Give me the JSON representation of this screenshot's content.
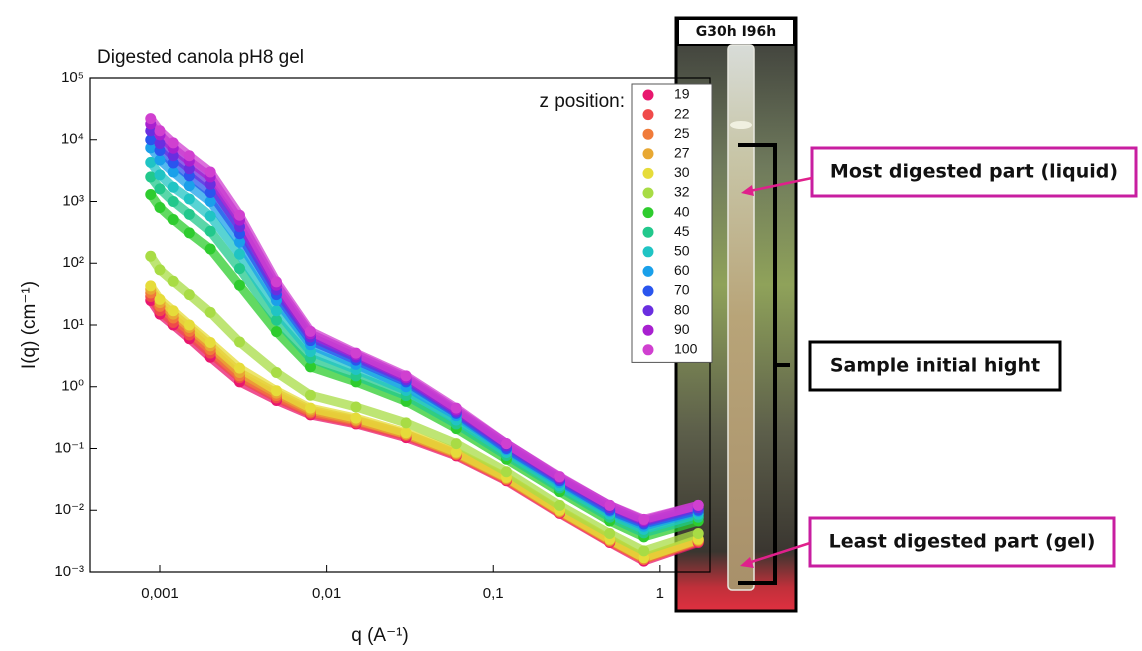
{
  "chart_data": {
    "type": "scatter",
    "title": "Digested canola pH8 gel",
    "x_label": "q (A⁻¹)",
    "y_label": "I(q) (cm⁻¹)",
    "legend_title": "z position:",
    "log_x": true,
    "log_y": true,
    "xlim": [
      0.00038,
      2
    ],
    "ylim": [
      0.001,
      100000
    ],
    "xticks": [
      {
        "value": 0.001,
        "label": "0,001"
      },
      {
        "value": 0.01,
        "label": "0,01"
      },
      {
        "value": 0.1,
        "label": "0,1"
      },
      1
    ],
    "yticks": [
      {
        "value": 0.001,
        "label": "10⁻³"
      },
      {
        "value": 0.01,
        "label": "10⁻²"
      },
      {
        "value": 0.1,
        "label": "10⁻¹"
      },
      {
        "value": 1,
        "label": "10⁰"
      },
      {
        "value": 10,
        "label": "10¹"
      },
      {
        "value": 100,
        "label": "10²"
      },
      {
        "value": 1000,
        "label": "10³"
      },
      {
        "value": 10000,
        "label": "10⁴"
      },
      {
        "value": 100000,
        "label": "10⁵"
      }
    ],
    "x": [
      0.00088,
      0.001,
      0.0012,
      0.0015,
      0.002,
      0.003,
      0.005,
      0.008,
      0.015,
      0.03,
      0.06,
      0.12,
      0.25,
      0.5,
      0.8,
      1.7
    ],
    "series": [
      {
        "name": "19",
        "color": "#e8176e",
        "values": [
          25,
          15,
          10,
          6.0,
          3.0,
          1.2,
          0.6,
          0.35,
          0.25,
          0.15,
          0.076,
          0.03,
          0.0089,
          0.003,
          0.0015,
          0.003
        ]
      },
      {
        "name": "22",
        "color": "#f04a4a",
        "values": [
          29,
          17,
          11,
          6.9,
          3.5,
          1.4,
          0.66,
          0.37,
          0.26,
          0.16,
          0.079,
          0.031,
          0.0092,
          0.0031,
          0.0016,
          0.0031
        ]
      },
      {
        "name": "25",
        "color": "#f07b3a",
        "values": [
          33,
          20,
          13,
          7.9,
          4.0,
          1.5,
          0.72,
          0.39,
          0.28,
          0.17,
          0.081,
          0.032,
          0.0094,
          0.0032,
          0.0016,
          0.0032
        ]
      },
      {
        "name": "27",
        "color": "#e8a833",
        "values": [
          38,
          23,
          15,
          9.1,
          4.6,
          1.7,
          0.79,
          0.42,
          0.29,
          0.17,
          0.084,
          0.033,
          0.0097,
          0.0033,
          0.0017,
          0.0033
        ]
      },
      {
        "name": "30",
        "color": "#e6dc3a",
        "values": [
          43,
          26,
          17,
          10,
          5.2,
          2.0,
          0.86,
          0.45,
          0.31,
          0.18,
          0.087,
          0.034,
          0.01,
          0.0034,
          0.0017,
          0.0034
        ]
      },
      {
        "name": "32",
        "color": "#a8dc45",
        "values": [
          130,
          78,
          51,
          31,
          16,
          5.3,
          1.7,
          0.73,
          0.47,
          0.26,
          0.12,
          0.042,
          0.012,
          0.0042,
          0.0022,
          0.0042
        ]
      },
      {
        "name": "40",
        "color": "#2ecc2e",
        "values": [
          1300,
          800,
          510,
          310,
          170,
          44,
          7.8,
          2.1,
          1.2,
          0.58,
          0.21,
          0.067,
          0.02,
          0.0067,
          0.0037,
          0.0067
        ]
      },
      {
        "name": "45",
        "color": "#22c88c",
        "values": [
          2500,
          1600,
          1000,
          620,
          330,
          82,
          12,
          2.9,
          1.5,
          0.72,
          0.25,
          0.077,
          0.023,
          0.0077,
          0.0043,
          0.0077
        ]
      },
      {
        "name": "50",
        "color": "#20c4c4",
        "values": [
          4300,
          2700,
          1700,
          1100,
          580,
          140,
          17,
          3.7,
          1.9,
          0.87,
          0.29,
          0.086,
          0.025,
          0.0086,
          0.0049,
          0.0086
        ]
      },
      {
        "name": "60",
        "color": "#1aa0ea",
        "values": [
          7400,
          4700,
          3000,
          1800,
          1000,
          220,
          25,
          4.8,
          2.3,
          1.0,
          0.34,
          0.096,
          0.028,
          0.0096,
          0.0055,
          0.0096
        ]
      },
      {
        "name": "70",
        "color": "#2a55ee",
        "values": [
          10000,
          6700,
          4200,
          2600,
          1400,
          300,
          31,
          5.6,
          2.7,
          1.2,
          0.37,
          0.1,
          0.03,
          0.01,
          0.006,
          0.01
        ]
      },
      {
        "name": "80",
        "color": "#6a2ee0",
        "values": [
          14000,
          8700,
          5500,
          3400,
          1900,
          390,
          37,
          6.4,
          3.0,
          1.3,
          0.39,
          0.11,
          0.032,
          0.011,
          0.0064,
          0.011
        ]
      },
      {
        "name": "90",
        "color": "#a820d0",
        "values": [
          18000,
          12000,
          7300,
          4500,
          2500,
          500,
          44,
          7.2,
          3.3,
          1.4,
          0.42,
          0.12,
          0.034,
          0.012,
          0.0068,
          0.012
        ]
      },
      {
        "name": "100",
        "color": "#d040d0",
        "values": [
          22000,
          14000,
          8900,
          5500,
          3000,
          600,
          50,
          7.9,
          3.5,
          1.5,
          0.45,
          0.12,
          0.035,
          0.012,
          0.0071,
          0.012
        ]
      }
    ]
  },
  "photo": {
    "label": "G30h I96h",
    "annotations": [
      "Most digested part (liquid)",
      "Sample initial hight",
      "Least digested part (gel)"
    ]
  }
}
